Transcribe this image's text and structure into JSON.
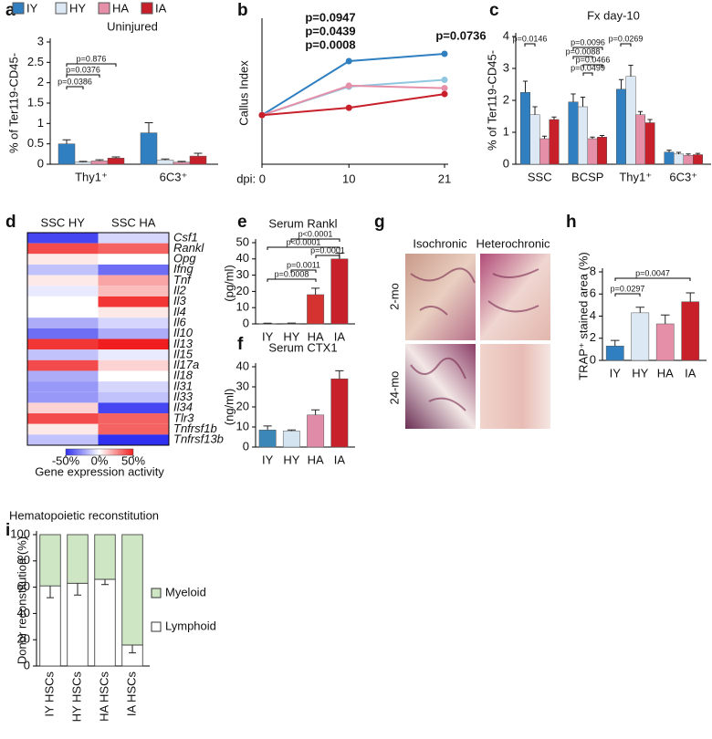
{
  "panel_labels": [
    "a",
    "b",
    "c",
    "d",
    "e",
    "f",
    "g",
    "h",
    "i"
  ],
  "images": {
    "column_labels": [
      "Isochronic",
      "Heterochronic"
    ],
    "row_labels": [
      "2-mo",
      "24-mo"
    ]
  },
  "chart_data": [
    {
      "type": "bar",
      "title": "Uninjured",
      "y_label": "% of Ter119-CD45-",
      "legend": "top",
      "categories": [
        "Thy1⁺",
        "6C3⁺"
      ],
      "series": [
        {
          "name": "IY",
          "color": "#2f7fc1",
          "values": [
            0.5,
            0.77
          ],
          "errors": [
            0.1,
            0.25
          ]
        },
        {
          "name": "HY",
          "color": "#dce9f5",
          "values": [
            0.05,
            0.1
          ],
          "errors": [
            0.02,
            0.03
          ]
        },
        {
          "name": "HA",
          "color": "#e58fa9",
          "values": [
            0.08,
            0.05
          ],
          "errors": [
            0.03,
            0.02
          ]
        },
        {
          "name": "IA",
          "color": "#c8202a",
          "values": [
            0.15,
            0.2
          ],
          "errors": [
            0.03,
            0.07
          ]
        }
      ],
      "ylim": [
        0,
        3
      ],
      "yticks": [
        0,
        0.5,
        1,
        1.5,
        2,
        2.5,
        3
      ],
      "annotations": [
        "p=0.876",
        "p=0.0376",
        "p=0.0386"
      ]
    },
    {
      "type": "line",
      "y_label": "Callus Index",
      "x": [
        0,
        10,
        21
      ],
      "xlim": [
        0,
        21
      ],
      "xticks": [
        {
          "value": 0,
          "label": "dpi: 0"
        },
        10,
        21
      ],
      "ylim": [
        0,
        2.9
      ],
      "yticks": [],
      "series": [
        {
          "color": "#2f7fc1",
          "values": [
            1,
            2.1,
            2.25
          ]
        },
        {
          "color": "#8fc6e0",
          "values": [
            1,
            1.58,
            1.72
          ]
        },
        {
          "color": "#e58fa9",
          "values": [
            1,
            1.6,
            1.55
          ]
        },
        {
          "color": "#c8202a",
          "values": [
            1,
            1.15,
            1.43
          ]
        }
      ],
      "annotations": [
        {
          "text": "p=0.0947",
          "color": "#e0799a"
        },
        {
          "text": "p=0.0439",
          "color": "#7cc0dc"
        },
        {
          "text": "p=0.0008",
          "color": "#c8202a"
        },
        {
          "text": "p=0.0736",
          "color": "#c8202a"
        }
      ]
    },
    {
      "type": "bar",
      "title": "Fx day-10",
      "y_label": "% of Ter119-CD45-",
      "categories": [
        "SSC",
        "BCSP",
        "Thy1⁺",
        "6C3⁺"
      ],
      "series": [
        {
          "color": "#2f7fc1",
          "values": [
            2.25,
            1.95,
            2.35,
            0.38
          ],
          "errors": [
            0.35,
            0.25,
            0.3,
            0.06
          ]
        },
        {
          "color": "#dce9f5",
          "values": [
            1.55,
            1.8,
            2.75,
            0.32
          ],
          "errors": [
            0.25,
            0.3,
            0.35,
            0.05
          ]
        },
        {
          "color": "#e58fa9",
          "values": [
            0.8,
            0.8,
            1.55,
            0.28
          ],
          "errors": [
            0.08,
            0.05,
            0.1,
            0.04
          ]
        },
        {
          "color": "#c8202a",
          "values": [
            1.4,
            0.85,
            1.3,
            0.3
          ],
          "errors": [
            0.08,
            0.05,
            0.1,
            0.04
          ]
        }
      ],
      "ylim": [
        0,
        4
      ],
      "yticks": [
        0,
        1,
        2,
        3,
        4
      ],
      "annotations": [
        "p=0.0146",
        "p=0.0096",
        "p=0.0088",
        "p=0.0466",
        "p=0.0499",
        "p=0.0269"
      ]
    },
    {
      "type": "heatmap",
      "columns": [
        "SSC HY",
        "SSC HA"
      ],
      "rows": [
        "Csf1",
        "Rankl",
        "Opg",
        "Ifng",
        "Tnf",
        "Il2",
        "Il3",
        "Il4",
        "Il6",
        "Il10",
        "Il13",
        "Il15",
        "Il17a",
        "Il18",
        "Il31",
        "Il33",
        "Il34",
        "Tlr3",
        "Tnfrsf1b",
        "Tnfrsf13b"
      ],
      "values": [
        [
          -45,
          -10
        ],
        [
          40,
          35
        ],
        [
          5,
          0
        ],
        [
          -15,
          -35
        ],
        [
          5,
          20
        ],
        [
          -5,
          15
        ],
        [
          0,
          45
        ],
        [
          0,
          5
        ],
        [
          -20,
          -10
        ],
        [
          -35,
          -20
        ],
        [
          45,
          50
        ],
        [
          -15,
          -5
        ],
        [
          40,
          10
        ],
        [
          -20,
          0
        ],
        [
          -25,
          -10
        ],
        [
          -25,
          -15
        ],
        [
          10,
          -45
        ],
        [
          40,
          35
        ],
        [
          5,
          35
        ],
        [
          -15,
          -50
        ]
      ],
      "zlim": [
        -50,
        50
      ],
      "low_color": "#3030f0",
      "high_color": "#f01e1e",
      "colorbar_ticks": [
        {
          "value": -50,
          "label": "-50%"
        },
        {
          "value": 0,
          "label": "0%"
        },
        {
          "value": 50,
          "label": "50%"
        }
      ],
      "colorbar_label": "Gene expression activity"
    },
    {
      "type": "bar",
      "title": "Serum Rankl",
      "y_label": "(pg/ml)",
      "categories": [
        "IY",
        "HY",
        "HA",
        "IA"
      ],
      "values": [
        0.2,
        0.3,
        18,
        40
      ],
      "errors": [
        0.2,
        0.2,
        4,
        3.5
      ],
      "colors": [
        "#2f7fc1",
        "#dce9f5",
        "#d4332f",
        "#c8202a"
      ],
      "ylim": [
        0,
        50
      ],
      "yticks": [
        0,
        10,
        20,
        30,
        40,
        50
      ],
      "annotations": [
        "p=0.0008",
        "p=0.0011",
        "p<0.0001",
        "p<0.0001",
        "p=0.0001"
      ]
    },
    {
      "type": "bar",
      "title": "Serum CTX1",
      "y_label": "(ng/ml)",
      "categories": [
        "IY",
        "HY",
        "HA",
        "IA"
      ],
      "values": [
        8.5,
        8,
        16,
        34
      ],
      "errors": [
        2,
        0.5,
        2.5,
        4
      ],
      "colors": [
        "#3a87b8",
        "#d4e4f0",
        "#e08ca8",
        "#c8202a"
      ],
      "ylim": [
        0,
        40
      ],
      "yticks": [
        0,
        10,
        20,
        30,
        40
      ]
    },
    {
      "type": "bar",
      "y_label": "TRAP⁺ stained area (%)",
      "categories": [
        "IY",
        "HY",
        "HA",
        "IA"
      ],
      "values": [
        1.3,
        4.3,
        3.3,
        5.3
      ],
      "errors": [
        0.5,
        0.5,
        0.8,
        0.8
      ],
      "colors": [
        "#2f7fc1",
        "#dce9f5",
        "#e58fa9",
        "#c8202a"
      ],
      "ylim": [
        0,
        8
      ],
      "yticks": [
        0,
        2,
        4,
        6,
        8
      ],
      "annotations": [
        "p=0.0297",
        "p=0.0047"
      ]
    },
    {
      "type": "stacked_bar",
      "title": "Hematopoietic reconstitution",
      "y_label": "Donor reconstitution (%)",
      "legend": "right",
      "categories": [
        "IY HSCs",
        "HY HSCs",
        "HA HSCs",
        "IA HSCs"
      ],
      "series": [
        {
          "name": "Lymphoid",
          "color": "#ffffff",
          "values": [
            61,
            63,
            66,
            16
          ],
          "errors": [
            9,
            9,
            4,
            6
          ]
        },
        {
          "name": "Myeloid",
          "color": "#cfe6c4",
          "values": [
            39,
            37,
            34,
            84
          ]
        }
      ],
      "ylim": [
        0,
        100
      ],
      "yticks": [
        0,
        20,
        40,
        60,
        80,
        100
      ]
    }
  ]
}
